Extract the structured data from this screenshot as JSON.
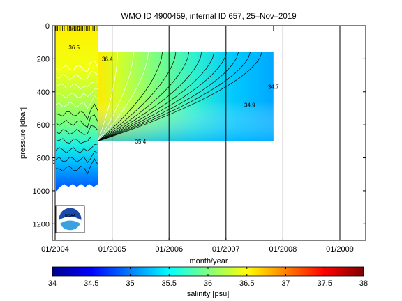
{
  "chart_data": {
    "type": "heatmap",
    "title": "WMO ID 4900459, internal ID 657, 25–Nov–2019",
    "xlabel": "month/year",
    "ylabel": "pressure [dbar]",
    "x_ticks": [
      "01/2004",
      "01/2005",
      "01/2006",
      "01/2007",
      "01/2008",
      "01/2009"
    ],
    "x_range": [
      "2003-12",
      "2009-07"
    ],
    "y_ticks": [
      0,
      200,
      400,
      600,
      800,
      1000,
      1200
    ],
    "ylim": [
      1300,
      0
    ],
    "y_reversed": true,
    "grid": "vertical lines at each year",
    "colorbar": {
      "label": "salinity [psu]",
      "ticks": [
        34,
        34.5,
        35,
        35.5,
        36,
        36.5,
        37,
        37.5,
        38
      ],
      "range": [
        34,
        38
      ],
      "colormap": "jet"
    },
    "contour_labels": [
      {
        "text": "36.4",
        "date": "2004-12",
        "pressure": 200
      },
      {
        "text": "35.4",
        "date": "2005-07",
        "pressure": 700
      },
      {
        "text": "34.9",
        "date": "2007-06",
        "pressure": 480
      },
      {
        "text": "34.7",
        "date": "2007-11",
        "pressure": 370
      },
      {
        "text": "36.5",
        "date": "2004-05",
        "pressure": 20
      },
      {
        "text": "36.5",
        "date": "2004-05",
        "pressure": 130
      },
      {
        "text": "35.2",
        "date": "2003-12",
        "pressure": 825
      }
    ],
    "profiles": {
      "early_float": {
        "start": "2004-01",
        "end": "2004-10",
        "max_pressure": 960
      },
      "interpolated": {
        "start": "2004-10",
        "end": "2007-11",
        "min_pressure": 160,
        "max_pressure": 700
      }
    },
    "sample_surface_value": 36.6,
    "sample_deep_value": 35.0
  },
  "logo": {
    "text": "NOAA"
  },
  "colors": {
    "frame": "#000000",
    "background": "#ffffff"
  }
}
